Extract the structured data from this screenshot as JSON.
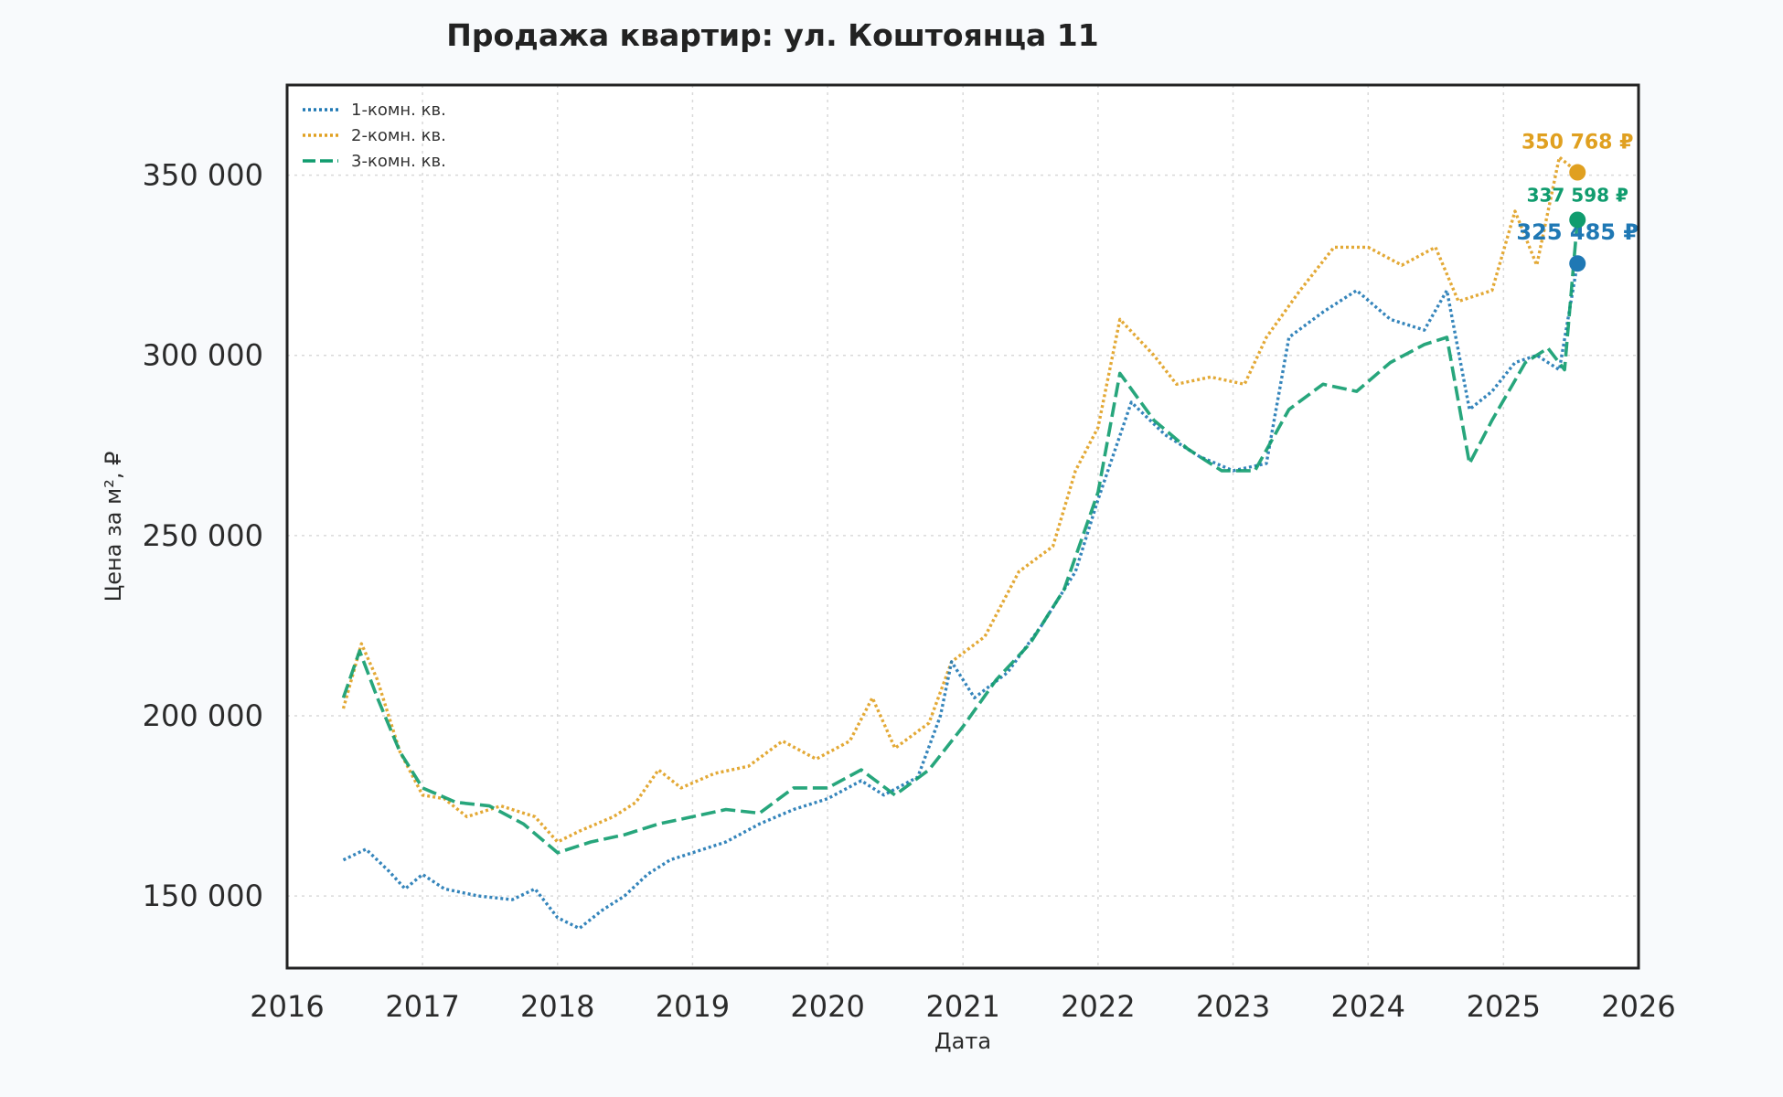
{
  "chart_data": {
    "type": "line",
    "title": "Продажа квартир: ул. Коштоянца 11",
    "xlabel": "Дата",
    "ylabel": "Цена за м², ₽",
    "xlim": [
      "2016-01-01",
      "2026-01-01"
    ],
    "ylim": [
      130000,
      375000
    ],
    "x_ticks": [
      "2016",
      "2017",
      "2018",
      "2019",
      "2020",
      "2021",
      "2022",
      "2023",
      "2024",
      "2025",
      "2026"
    ],
    "y_ticks": [
      150000,
      200000,
      250000,
      300000,
      350000
    ],
    "y_tick_labels": [
      "150 000",
      "200 000",
      "250 000",
      "300 000",
      "350 000"
    ],
    "grid": true,
    "legend_position": "top-left",
    "series": [
      {
        "name": "1-комн. кв.",
        "color": "#1f78b4",
        "style": "dotted",
        "end_date": "2025-07-20",
        "end_value": 325485,
        "end_label": "325 485 ₽",
        "points": [
          [
            "2016-06-01",
            160000
          ],
          [
            "2016-08-01",
            163000
          ],
          [
            "2016-10-01",
            157000
          ],
          [
            "2016-11-15",
            152000
          ],
          [
            "2017-01-01",
            156000
          ],
          [
            "2017-03-01",
            152000
          ],
          [
            "2017-06-01",
            150000
          ],
          [
            "2017-09-01",
            149000
          ],
          [
            "2017-11-01",
            152000
          ],
          [
            "2018-01-01",
            144000
          ],
          [
            "2018-03-01",
            141000
          ],
          [
            "2018-05-01",
            146000
          ],
          [
            "2018-07-01",
            150000
          ],
          [
            "2018-09-01",
            156000
          ],
          [
            "2018-11-01",
            160000
          ],
          [
            "2019-01-01",
            162000
          ],
          [
            "2019-04-01",
            165000
          ],
          [
            "2019-07-01",
            170000
          ],
          [
            "2019-10-01",
            174000
          ],
          [
            "2020-01-01",
            177000
          ],
          [
            "2020-04-01",
            182000
          ],
          [
            "2020-06-01",
            178000
          ],
          [
            "2020-09-01",
            183000
          ],
          [
            "2020-11-01",
            200000
          ],
          [
            "2020-12-01",
            215000
          ],
          [
            "2021-02-01",
            205000
          ],
          [
            "2021-05-01",
            212000
          ],
          [
            "2021-08-01",
            225000
          ],
          [
            "2021-11-01",
            240000
          ],
          [
            "2022-01-01",
            260000
          ],
          [
            "2022-04-01",
            287000
          ],
          [
            "2022-07-01",
            278000
          ],
          [
            "2022-10-01",
            272000
          ],
          [
            "2023-01-01",
            268000
          ],
          [
            "2023-04-01",
            270000
          ],
          [
            "2023-06-01",
            305000
          ],
          [
            "2023-09-01",
            312000
          ],
          [
            "2023-12-01",
            318000
          ],
          [
            "2024-03-01",
            310000
          ],
          [
            "2024-06-01",
            307000
          ],
          [
            "2024-08-01",
            318000
          ],
          [
            "2024-10-01",
            285000
          ],
          [
            "2024-12-01",
            290000
          ],
          [
            "2025-02-01",
            298000
          ],
          [
            "2025-04-01",
            300000
          ],
          [
            "2025-06-01",
            296000
          ],
          [
            "2025-07-20",
            325485
          ]
        ]
      },
      {
        "name": "2-комн. кв.",
        "color": "#e0a020",
        "style": "dotted",
        "end_date": "2025-07-20",
        "end_value": 350768,
        "end_label": "350 768 ₽",
        "points": [
          [
            "2016-06-01",
            202000
          ],
          [
            "2016-07-20",
            220000
          ],
          [
            "2016-09-01",
            210000
          ],
          [
            "2016-11-01",
            190000
          ],
          [
            "2017-01-01",
            178000
          ],
          [
            "2017-03-01",
            177000
          ],
          [
            "2017-05-01",
            172000
          ],
          [
            "2017-08-01",
            175000
          ],
          [
            "2017-11-01",
            172000
          ],
          [
            "2018-01-01",
            165000
          ],
          [
            "2018-03-01",
            168000
          ],
          [
            "2018-06-01",
            172000
          ],
          [
            "2018-08-01",
            176000
          ],
          [
            "2018-10-01",
            185000
          ],
          [
            "2018-12-01",
            180000
          ],
          [
            "2019-03-01",
            184000
          ],
          [
            "2019-06-01",
            186000
          ],
          [
            "2019-09-01",
            193000
          ],
          [
            "2019-12-01",
            188000
          ],
          [
            "2020-03-01",
            193000
          ],
          [
            "2020-05-01",
            205000
          ],
          [
            "2020-07-01",
            191000
          ],
          [
            "2020-10-01",
            198000
          ],
          [
            "2020-12-01",
            215000
          ],
          [
            "2021-03-01",
            222000
          ],
          [
            "2021-06-01",
            240000
          ],
          [
            "2021-09-01",
            247000
          ],
          [
            "2021-11-01",
            268000
          ],
          [
            "2022-01-01",
            280000
          ],
          [
            "2022-03-01",
            310000
          ],
          [
            "2022-06-01",
            300000
          ],
          [
            "2022-08-01",
            292000
          ],
          [
            "2022-11-01",
            294000
          ],
          [
            "2023-02-01",
            292000
          ],
          [
            "2023-04-01",
            305000
          ],
          [
            "2023-07-01",
            318000
          ],
          [
            "2023-10-01",
            330000
          ],
          [
            "2024-01-01",
            330000
          ],
          [
            "2024-04-01",
            325000
          ],
          [
            "2024-07-01",
            330000
          ],
          [
            "2024-09-01",
            315000
          ],
          [
            "2024-12-01",
            318000
          ],
          [
            "2025-02-01",
            340000
          ],
          [
            "2025-04-01",
            325000
          ],
          [
            "2025-06-01",
            355000
          ],
          [
            "2025-07-20",
            350768
          ]
        ]
      },
      {
        "name": "3-комн. кв.",
        "color": "#109c6e",
        "style": "dashed",
        "end_date": "2025-07-20",
        "end_value": 337598,
        "end_label": "337 598 ₽",
        "points": [
          [
            "2016-06-01",
            205000
          ],
          [
            "2016-07-15",
            218000
          ],
          [
            "2016-09-01",
            205000
          ],
          [
            "2016-11-01",
            190000
          ],
          [
            "2017-01-01",
            180000
          ],
          [
            "2017-04-01",
            176000
          ],
          [
            "2017-07-01",
            175000
          ],
          [
            "2017-10-01",
            170000
          ],
          [
            "2018-01-01",
            162000
          ],
          [
            "2018-04-01",
            165000
          ],
          [
            "2018-07-01",
            167000
          ],
          [
            "2018-10-01",
            170000
          ],
          [
            "2019-01-01",
            172000
          ],
          [
            "2019-04-01",
            174000
          ],
          [
            "2019-07-01",
            173000
          ],
          [
            "2019-10-01",
            180000
          ],
          [
            "2020-01-01",
            180000
          ],
          [
            "2020-04-01",
            185000
          ],
          [
            "2020-07-01",
            178000
          ],
          [
            "2020-10-01",
            185000
          ],
          [
            "2021-01-01",
            197000
          ],
          [
            "2021-04-01",
            210000
          ],
          [
            "2021-07-01",
            220000
          ],
          [
            "2021-10-01",
            235000
          ],
          [
            "2022-01-01",
            262000
          ],
          [
            "2022-03-01",
            295000
          ],
          [
            "2022-06-01",
            282000
          ],
          [
            "2022-09-01",
            274000
          ],
          [
            "2022-12-01",
            268000
          ],
          [
            "2023-03-01",
            268000
          ],
          [
            "2023-06-01",
            285000
          ],
          [
            "2023-09-01",
            292000
          ],
          [
            "2023-12-01",
            290000
          ],
          [
            "2024-03-01",
            298000
          ],
          [
            "2024-06-01",
            303000
          ],
          [
            "2024-08-01",
            305000
          ],
          [
            "2024-10-01",
            270000
          ],
          [
            "2024-12-01",
            282000
          ],
          [
            "2025-03-01",
            298000
          ],
          [
            "2025-05-01",
            302000
          ],
          [
            "2025-06-15",
            296000
          ],
          [
            "2025-07-20",
            337598
          ]
        ]
      }
    ]
  }
}
